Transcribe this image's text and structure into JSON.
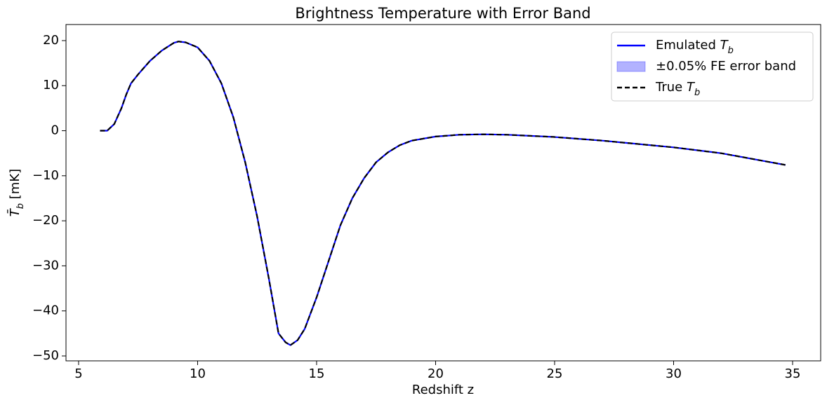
{
  "chart_data": {
    "type": "line",
    "title": "Brightness Temperature with Error Band",
    "x_label": "Redshift z",
    "y_label": "T̄_b [mK]",
    "x": [
      5.9,
      6.2,
      6.5,
      6.8,
      7.0,
      7.2,
      7.5,
      8.0,
      8.5,
      9.0,
      9.2,
      9.5,
      10.0,
      10.5,
      11.0,
      11.5,
      12.0,
      12.5,
      13.0,
      13.4,
      13.7,
      13.9,
      14.2,
      14.5,
      15.0,
      15.5,
      16.0,
      16.5,
      17.0,
      17.5,
      18.0,
      18.5,
      19.0,
      20.0,
      21.0,
      22.0,
      23.0,
      25.0,
      27.0,
      30.0,
      32.0,
      34.7
    ],
    "series": [
      {
        "name": "Emulated T_b",
        "color": "#0000ff",
        "dash": false,
        "values": [
          0.0,
          0.0,
          1.5,
          5,
          8,
          10.5,
          12.5,
          15.5,
          17.8,
          19.5,
          19.8,
          19.6,
          18.5,
          15.5,
          10.5,
          3,
          -7,
          -19,
          -33,
          -45,
          -47,
          -47.6,
          -46.5,
          -44,
          -37,
          -29,
          -21,
          -15,
          -10.5,
          -7,
          -4.8,
          -3.2,
          -2.2,
          -1.3,
          -0.9,
          -0.8,
          -0.9,
          -1.4,
          -2.2,
          -3.7,
          -5,
          -7.6
        ]
      },
      {
        "name": "True T_b",
        "color": "#000000",
        "dash": true,
        "values": [
          0.0,
          0.0,
          1.5,
          5,
          8,
          10.5,
          12.5,
          15.5,
          17.8,
          19.5,
          19.8,
          19.6,
          18.5,
          15.5,
          10.5,
          3,
          -7,
          -19,
          -33,
          -45,
          -47,
          -47.6,
          -46.5,
          -44,
          -37,
          -29,
          -21,
          -15,
          -10.5,
          -7,
          -4.8,
          -3.2,
          -2.2,
          -1.3,
          -0.9,
          -0.8,
          -0.9,
          -1.4,
          -2.2,
          -3.7,
          -5,
          -7.6
        ]
      }
    ],
    "band": {
      "name": "±0.05% FE error band",
      "color": "#0000ff",
      "lower": [
        0.0,
        0.0,
        1.5,
        5,
        8,
        10.5,
        12.5,
        15.5,
        17.8,
        19.5,
        19.8,
        19.6,
        18.5,
        15.5,
        10.5,
        3,
        -7,
        -19,
        -33,
        -45,
        -47,
        -47.6,
        -46.5,
        -44,
        -37,
        -29,
        -21,
        -15,
        -10.5,
        -7,
        -4.8,
        -3.2,
        -2.2,
        -1.3,
        -0.9,
        -0.8,
        -0.9,
        -1.4,
        -2.2,
        -3.7,
        -5,
        -7.6
      ],
      "upper": [
        0.0,
        0.0,
        1.5,
        5,
        8,
        10.5,
        12.5,
        15.5,
        17.8,
        19.5,
        19.8,
        19.6,
        18.5,
        15.5,
        10.5,
        3,
        -7,
        -19,
        -33,
        -45,
        -47,
        -47.6,
        -46.5,
        -44,
        -37,
        -29,
        -21,
        -15,
        -10.5,
        -7,
        -4.8,
        -3.2,
        -2.2,
        -1.3,
        -0.9,
        -0.8,
        -0.9,
        -1.4,
        -2.2,
        -3.7,
        -5,
        -7.6
      ]
    },
    "xlim": [
      4.47,
      36.18
    ],
    "ylim": [
      -51.09,
      23.57
    ],
    "xticks": [
      5,
      10,
      15,
      20,
      25,
      30,
      35
    ],
    "yticks": [
      {
        "value": -50,
        "label": "−50"
      },
      {
        "value": -40,
        "label": "−40"
      },
      {
        "value": -30,
        "label": "−30"
      },
      {
        "value": -20,
        "label": "−20"
      },
      {
        "value": -10,
        "label": "−10"
      },
      0,
      10,
      20
    ],
    "grid": false,
    "legend": "upper right"
  }
}
